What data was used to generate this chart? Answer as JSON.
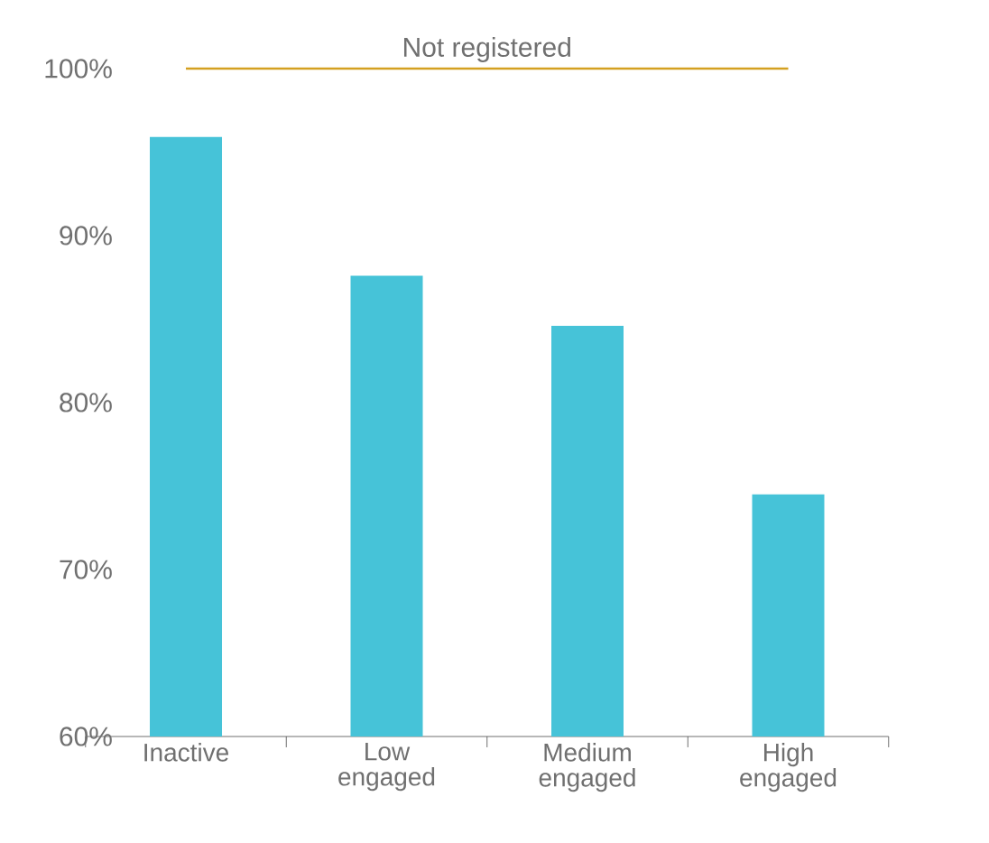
{
  "chart_data": {
    "type": "bar",
    "categories": [
      "Inactive",
      "Low engaged",
      "Medium engaged",
      "High engaged"
    ],
    "values": [
      95.9,
      87.6,
      84.6,
      74.5
    ],
    "color": "#46c3d8",
    "ylim": [
      60,
      100
    ],
    "yticks": [
      {
        "value": 60,
        "label": "60%"
      },
      {
        "value": 70,
        "label": "70%"
      },
      {
        "value": 80,
        "label": "80%"
      },
      {
        "value": 90,
        "label": "90%"
      },
      {
        "value": 100,
        "label": "100%"
      }
    ],
    "ref_lines": [
      {
        "axis": "y",
        "value": 100,
        "label": "Not registered",
        "color": "#d4a020"
      }
    ]
  }
}
